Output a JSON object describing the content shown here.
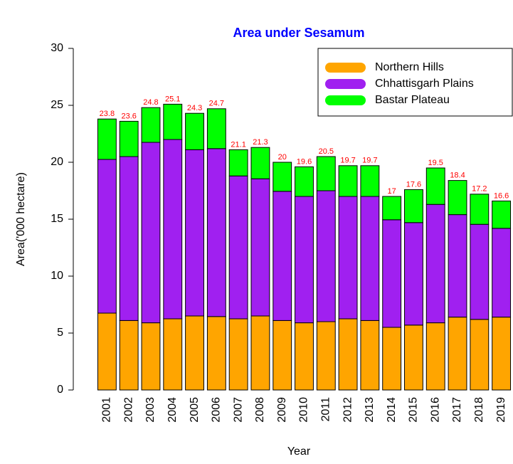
{
  "chart_data": {
    "type": "stacked_bar",
    "title": "Area under Sesamum",
    "xlabel": "Year",
    "ylabel": "Area('000 hectare)",
    "categories": [
      "2001",
      "2002",
      "2003",
      "2004",
      "2005",
      "2006",
      "2007",
      "2008",
      "2009",
      "2010",
      "2011",
      "2012",
      "2013",
      "2014",
      "2015",
      "2016",
      "2017",
      "2018",
      "2019"
    ],
    "series": [
      {
        "name": "Northern Hills",
        "color": "#FFA500",
        "values": [
          6.75,
          6.1,
          5.9,
          6.25,
          6.5,
          6.45,
          6.25,
          6.5,
          6.1,
          5.9,
          6.0,
          6.25,
          6.1,
          5.5,
          5.7,
          5.9,
          6.4,
          6.2,
          6.4
        ]
      },
      {
        "name": "Chhattisgarh Plains",
        "color": "#A020F0",
        "values": [
          13.5,
          14.4,
          15.85,
          15.75,
          14.6,
          14.75,
          12.55,
          12.05,
          11.35,
          11.1,
          11.5,
          10.75,
          10.9,
          9.45,
          9.0,
          10.4,
          9.0,
          8.35,
          7.8
        ]
      },
      {
        "name": "Bastar Plateau",
        "color": "#00FF00",
        "values": [
          3.55,
          3.1,
          3.05,
          3.1,
          3.2,
          3.5,
          2.3,
          2.75,
          2.55,
          2.6,
          3.0,
          2.7,
          2.7,
          2.05,
          2.9,
          3.2,
          3.0,
          2.65,
          2.4
        ]
      }
    ],
    "totals": [
      23.8,
      23.6,
      24.8,
      25.1,
      24.3,
      24.7,
      21.1,
      21.3,
      20,
      19.6,
      20.5,
      19.7,
      19.7,
      17,
      17.6,
      19.5,
      18.4,
      17.2,
      16.6
    ],
    "totals_color": "#FF0000",
    "ylim": [
      0,
      30
    ],
    "yticks": [
      0,
      5,
      10,
      15,
      20,
      25,
      30
    ],
    "legend": "topright"
  }
}
